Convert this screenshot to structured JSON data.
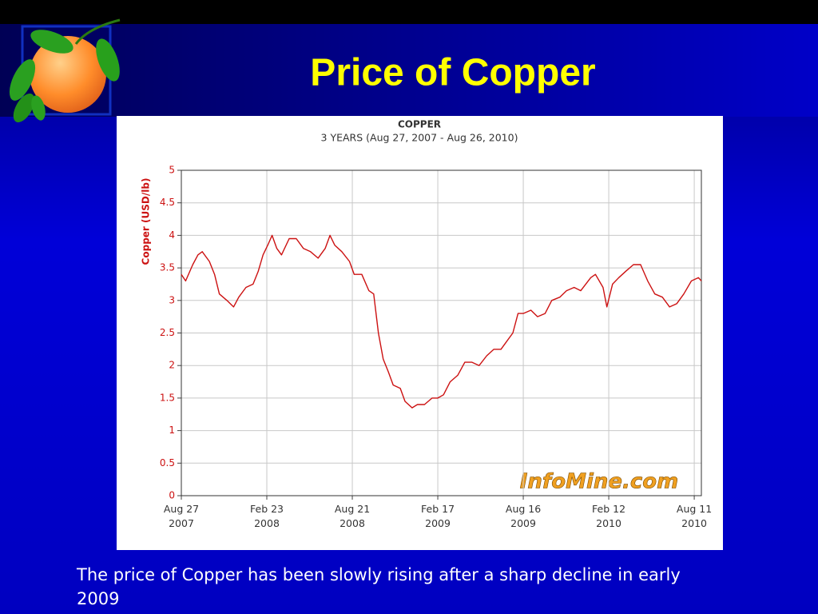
{
  "slide_title": "Price of Copper",
  "caption": "The price of Copper has been slowly rising after a sharp decline in early 2009",
  "chart_data": {
    "type": "line",
    "title": "COPPER",
    "subtitle": "3 YEARS (Aug 27, 2007 - Aug 26, 2010)",
    "y_label": "Copper (USD/lb)",
    "watermark": "InfoMine.com",
    "color": "#cc1111",
    "grid": true,
    "xlim": [
      "2007-08-27",
      "2010-08-26"
    ],
    "ylim": [
      0,
      5
    ],
    "yticks": [
      0,
      0.5,
      1,
      1.5,
      2,
      2.5,
      3,
      3.5,
      4,
      4.5,
      5
    ],
    "xticks": [
      {
        "value": "2007-08-27",
        "label": [
          "Aug 27",
          "2007"
        ]
      },
      {
        "value": "2008-02-23",
        "label": [
          "Feb 23",
          "2008"
        ]
      },
      {
        "value": "2008-08-21",
        "label": [
          "Aug 21",
          "2008"
        ]
      },
      {
        "value": "2009-02-17",
        "label": [
          "Feb 17",
          "2009"
        ]
      },
      {
        "value": "2009-08-16",
        "label": [
          "Aug 16",
          "2009"
        ]
      },
      {
        "value": "2010-02-12",
        "label": [
          "Feb 12",
          "2010"
        ]
      },
      {
        "value": "2010-08-11",
        "label": [
          "Aug 11",
          "2010"
        ]
      }
    ],
    "x": [
      "2007-08-27",
      "2007-09-05",
      "2007-09-20",
      "2007-10-01",
      "2007-10-10",
      "2007-10-25",
      "2007-11-05",
      "2007-11-15",
      "2007-12-01",
      "2007-12-15",
      "2007-12-26",
      "2008-01-10",
      "2008-01-25",
      "2008-02-05",
      "2008-02-15",
      "2008-02-25",
      "2008-03-05",
      "2008-03-15",
      "2008-03-25",
      "2008-04-10",
      "2008-04-25",
      "2008-05-10",
      "2008-05-25",
      "2008-06-10",
      "2008-06-25",
      "2008-07-05",
      "2008-07-15",
      "2008-07-30",
      "2008-08-15",
      "2008-08-25",
      "2008-09-10",
      "2008-09-25",
      "2008-10-05",
      "2008-10-15",
      "2008-10-25",
      "2008-11-05",
      "2008-11-15",
      "2008-11-30",
      "2008-12-10",
      "2008-12-25",
      "2009-01-05",
      "2009-01-20",
      "2009-02-05",
      "2009-02-17",
      "2009-03-01",
      "2009-03-15",
      "2009-03-31",
      "2009-04-15",
      "2009-04-30",
      "2009-05-15",
      "2009-05-31",
      "2009-06-15",
      "2009-06-30",
      "2009-07-10",
      "2009-07-25",
      "2009-08-05",
      "2009-08-16",
      "2009-09-01",
      "2009-09-15",
      "2009-10-01",
      "2009-10-15",
      "2009-11-01",
      "2009-11-15",
      "2009-12-01",
      "2009-12-15",
      "2010-01-05",
      "2010-01-15",
      "2010-01-31",
      "2010-02-08",
      "2010-02-20",
      "2010-03-05",
      "2010-03-20",
      "2010-04-05",
      "2010-04-20",
      "2010-05-05",
      "2010-05-20",
      "2010-06-05",
      "2010-06-20",
      "2010-07-05",
      "2010-07-20",
      "2010-08-05",
      "2010-08-20",
      "2010-08-26"
    ],
    "values": [
      3.4,
      3.3,
      3.55,
      3.7,
      3.75,
      3.6,
      3.4,
      3.1,
      3.0,
      2.9,
      3.05,
      3.2,
      3.25,
      3.45,
      3.7,
      3.85,
      4.0,
      3.8,
      3.7,
      3.95,
      3.95,
      3.8,
      3.75,
      3.65,
      3.8,
      4.0,
      3.85,
      3.75,
      3.6,
      3.4,
      3.4,
      3.15,
      3.1,
      2.5,
      2.1,
      1.9,
      1.7,
      1.65,
      1.45,
      1.35,
      1.4,
      1.4,
      1.5,
      1.5,
      1.55,
      1.75,
      1.85,
      2.05,
      2.05,
      2.0,
      2.15,
      2.25,
      2.25,
      2.35,
      2.5,
      2.8,
      2.8,
      2.85,
      2.75,
      2.8,
      3.0,
      3.05,
      3.15,
      3.2,
      3.15,
      3.35,
      3.4,
      3.2,
      2.9,
      3.25,
      3.35,
      3.45,
      3.55,
      3.55,
      3.3,
      3.1,
      3.05,
      2.9,
      2.95,
      3.1,
      3.3,
      3.35,
      3.3
    ]
  }
}
